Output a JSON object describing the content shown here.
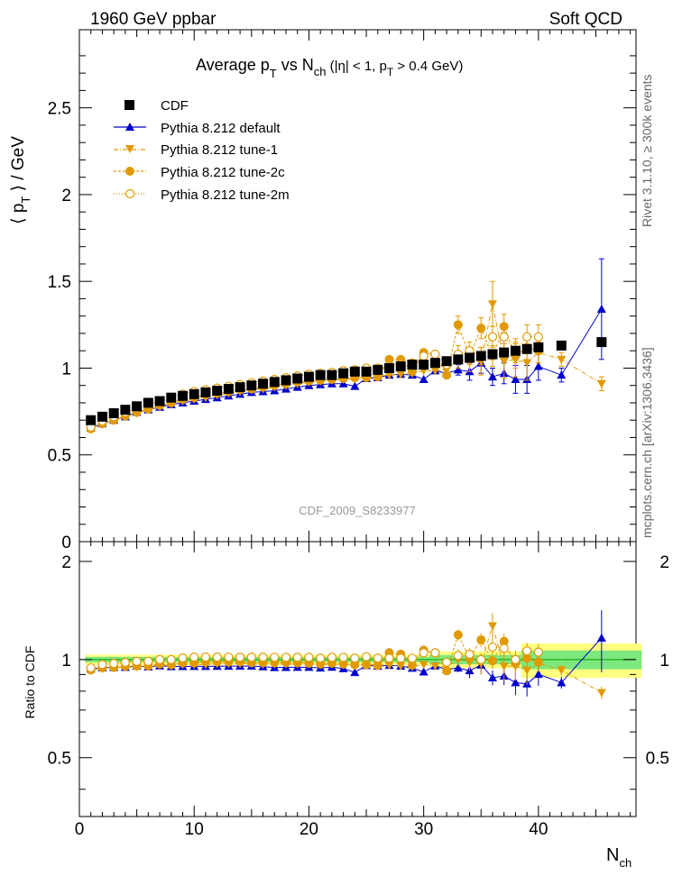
{
  "header": {
    "left": "1960 GeV ppbar",
    "right": "Soft QCD"
  },
  "title": {
    "main": "Average p",
    "main_sub": "T",
    "vs": " vs N",
    "vs_sub": "ch",
    "cond_a": " (|η| < 1, p",
    "cond_sub": "T",
    "cond_b": " > 0.4 GeV)"
  },
  "labels": {
    "ylabel_top": "⟨ p",
    "ylabel_top_sub": "T",
    "ylabel_top_end": " ⟩ / GeV",
    "ylabel_bottom": "Ratio to CDF",
    "xlabel": "N",
    "xlabel_sub": "ch",
    "watermark": "CDF_2009_S8233977",
    "side_top": "Rivet 3.1.10, ≥ 300k events",
    "side_bottom": "mcplots.cern.ch [arXiv:1306.3436]"
  },
  "colors": {
    "data": "#000000",
    "default": "#0000cc",
    "tune": "#e09a00",
    "band_inner": "#7de87d",
    "band_outer": "#ffff80"
  },
  "chart_data": {
    "type": "scatter",
    "xlim": [
      0,
      48.5
    ],
    "ylim": [
      0,
      2.95
    ],
    "ratio_ylim": [
      0.33,
      2.3
    ],
    "x_ticks": [
      "0",
      "10",
      "20",
      "30",
      "40"
    ],
    "y_ticks": [
      "0",
      "0.5",
      "1",
      "1.5",
      "2",
      "2.5"
    ],
    "ratio_ticks": [
      "0.5",
      "1",
      "2"
    ],
    "x": [
      1,
      2,
      3,
      4,
      5,
      6,
      7,
      8,
      9,
      10,
      11,
      12,
      13,
      14,
      15,
      16,
      17,
      18,
      19,
      20,
      21,
      22,
      23,
      24,
      25,
      26,
      27,
      28,
      29,
      30,
      31,
      32,
      33,
      34,
      35,
      36,
      37,
      38,
      39,
      40,
      42,
      45.5
    ],
    "series": [
      {
        "name": "CDF",
        "values": [
          0.7,
          0.72,
          0.74,
          0.76,
          0.78,
          0.8,
          0.81,
          0.83,
          0.84,
          0.85,
          0.86,
          0.87,
          0.88,
          0.89,
          0.9,
          0.91,
          0.92,
          0.93,
          0.94,
          0.95,
          0.96,
          0.96,
          0.97,
          0.98,
          0.98,
          0.99,
          1.0,
          1.01,
          1.02,
          1.02,
          1.03,
          1.04,
          1.05,
          1.06,
          1.07,
          1.08,
          1.09,
          1.1,
          1.11,
          1.12,
          1.13,
          1.15
        ]
      },
      {
        "name": "Pythia 8.212 default",
        "values": [
          0.655,
          0.68,
          0.7,
          0.72,
          0.745,
          0.76,
          0.775,
          0.79,
          0.8,
          0.81,
          0.82,
          0.83,
          0.84,
          0.85,
          0.86,
          0.865,
          0.87,
          0.88,
          0.89,
          0.9,
          0.905,
          0.91,
          0.91,
          0.895,
          0.94,
          0.945,
          0.96,
          0.965,
          0.96,
          0.935,
          0.985,
          0.97,
          0.99,
          0.98,
          1.03,
          0.95,
          0.97,
          0.935,
          0.935,
          1.01,
          0.96,
          1.34
        ],
        "err": [
          0,
          0,
          0,
          0,
          0,
          0,
          0,
          0,
          0,
          0,
          0,
          0,
          0,
          0,
          0,
          0,
          0,
          0,
          0,
          0,
          0,
          0,
          0,
          0,
          0,
          0,
          0,
          0,
          0,
          0,
          0,
          0,
          0.03,
          0.05,
          0.06,
          0.05,
          0.06,
          0.08,
          0.08,
          0.08,
          0.04,
          0.29
        ]
      },
      {
        "name": "Pythia 8.212 tune-1",
        "values": [
          0.65,
          0.675,
          0.7,
          0.72,
          0.74,
          0.76,
          0.78,
          0.795,
          0.81,
          0.82,
          0.83,
          0.845,
          0.855,
          0.865,
          0.875,
          0.88,
          0.89,
          0.9,
          0.91,
          0.92,
          0.925,
          0.93,
          0.935,
          0.94,
          0.945,
          0.955,
          0.96,
          0.965,
          0.97,
          0.985,
          0.985,
          0.99,
          1.05,
          1.04,
          1.04,
          1.37,
          1.04,
          1.05,
          1.03,
          1.09,
          1.05,
          0.91
        ],
        "err": [
          0,
          0,
          0,
          0,
          0,
          0,
          0,
          0,
          0,
          0,
          0,
          0,
          0,
          0,
          0,
          0,
          0,
          0,
          0,
          0,
          0,
          0,
          0,
          0,
          0,
          0,
          0,
          0,
          0,
          0,
          0,
          0,
          0.05,
          0.06,
          0.08,
          0.13,
          0.1,
          0.1,
          0.1,
          0.06,
          0.04,
          0.04
        ]
      },
      {
        "name": "Pythia 8.212 tune-2c",
        "values": [
          0.65,
          0.68,
          0.7,
          0.725,
          0.745,
          0.765,
          0.785,
          0.8,
          0.82,
          0.83,
          0.845,
          0.855,
          0.865,
          0.875,
          0.88,
          0.89,
          0.9,
          0.91,
          0.92,
          0.925,
          0.93,
          0.935,
          0.94,
          0.945,
          0.945,
          0.95,
          1.05,
          1.05,
          0.98,
          1.09,
          1.08,
          0.96,
          1.25,
          1.07,
          1.23,
          1.07,
          1.24,
          1.07,
          1.12,
          1.1
        ],
        "err": [
          0,
          0,
          0,
          0,
          0,
          0,
          0,
          0,
          0,
          0,
          0,
          0,
          0,
          0,
          0,
          0,
          0,
          0,
          0,
          0,
          0,
          0,
          0,
          0,
          0,
          0,
          0,
          0,
          0,
          0,
          0,
          0,
          0.05,
          0.05,
          0.06,
          0.06,
          0.07,
          0.07,
          0.07,
          0.07
        ]
      },
      {
        "name": "Pythia 8.212 tune-2m",
        "values": [
          0.66,
          0.695,
          0.72,
          0.745,
          0.77,
          0.79,
          0.81,
          0.83,
          0.85,
          0.865,
          0.875,
          0.885,
          0.895,
          0.905,
          0.915,
          0.925,
          0.935,
          0.945,
          0.955,
          0.965,
          0.97,
          0.975,
          0.985,
          0.99,
          1.0,
          1.0,
          1.01,
          1.02,
          1.03,
          1.07,
          1.08,
          1.02,
          1.08,
          1.1,
          1.07,
          1.18,
          1.18,
          1.1,
          1.18,
          1.18
        ],
        "err": [
          0,
          0,
          0,
          0,
          0,
          0,
          0,
          0,
          0,
          0,
          0,
          0,
          0,
          0,
          0,
          0,
          0,
          0,
          0,
          0,
          0,
          0,
          0,
          0,
          0,
          0,
          0,
          0,
          0,
          0,
          0,
          0,
          0.05,
          0.05,
          0.05,
          0.06,
          0.07,
          0.07,
          0.07,
          0.07
        ]
      }
    ]
  }
}
